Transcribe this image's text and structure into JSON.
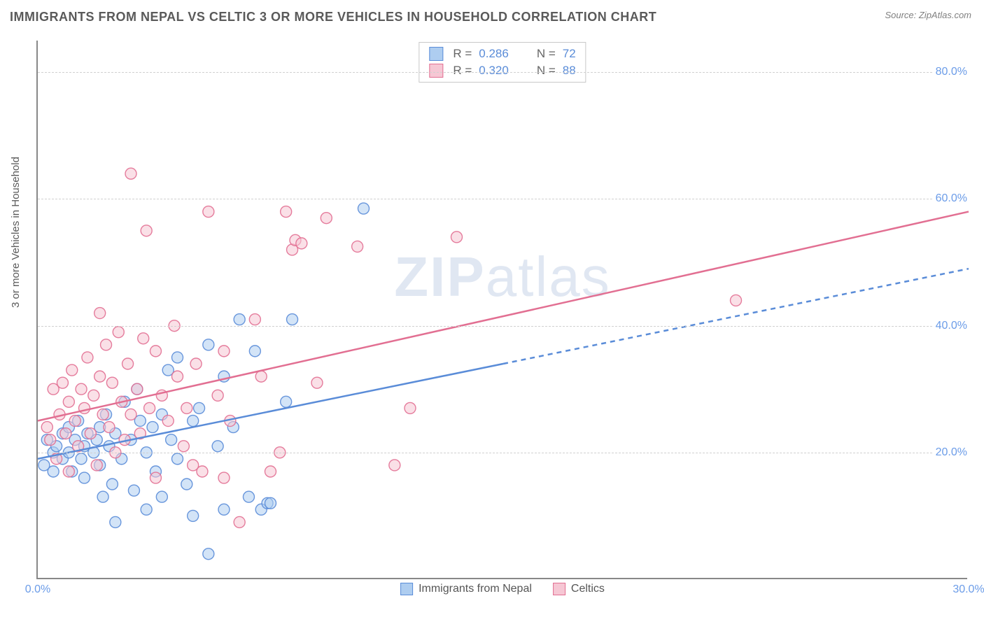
{
  "title": "IMMIGRANTS FROM NEPAL VS CELTIC 3 OR MORE VEHICLES IN HOUSEHOLD CORRELATION CHART",
  "source": "Source: ZipAtlas.com",
  "watermark_bold": "ZIP",
  "watermark_rest": "atlas",
  "y_axis_title": "3 or more Vehicles in Household",
  "chart": {
    "type": "scatter",
    "xlim": [
      0,
      30
    ],
    "ylim": [
      0,
      85
    ],
    "x_ticks": [
      {
        "v": 0,
        "label": "0.0%"
      },
      {
        "v": 30,
        "label": "30.0%"
      }
    ],
    "y_ticks": [
      {
        "v": 20,
        "label": "20.0%"
      },
      {
        "v": 40,
        "label": "40.0%"
      },
      {
        "v": 60,
        "label": "60.0%"
      },
      {
        "v": 80,
        "label": "80.0%"
      }
    ],
    "grid_color": "#d0d0d0",
    "grid_dash": "4,4",
    "background_color": "#ffffff",
    "marker_radius": 8,
    "marker_opacity": 0.55,
    "marker_stroke_width": 1.4,
    "series": [
      {
        "name": "Immigrants from Nepal",
        "fill": "#aecdf0",
        "stroke": "#5a8cd8",
        "R": "0.286",
        "N": "72",
        "trend": {
          "x1": 0,
          "y1": 19,
          "x2": 30,
          "y2": 49,
          "solid_until_x": 15,
          "width": 2.5
        },
        "points": [
          [
            0.2,
            18
          ],
          [
            0.3,
            22
          ],
          [
            0.5,
            20
          ],
          [
            0.5,
            17
          ],
          [
            0.6,
            21
          ],
          [
            0.8,
            23
          ],
          [
            0.8,
            19
          ],
          [
            1.0,
            20
          ],
          [
            1.0,
            24
          ],
          [
            1.1,
            17
          ],
          [
            1.2,
            22
          ],
          [
            1.3,
            25
          ],
          [
            1.4,
            19
          ],
          [
            1.5,
            21
          ],
          [
            1.5,
            16
          ],
          [
            1.6,
            23
          ],
          [
            1.8,
            20
          ],
          [
            1.9,
            22
          ],
          [
            2.0,
            24
          ],
          [
            2.0,
            18
          ],
          [
            2.1,
            13
          ],
          [
            2.2,
            26
          ],
          [
            2.3,
            21
          ],
          [
            2.4,
            15
          ],
          [
            2.5,
            23
          ],
          [
            2.5,
            9
          ],
          [
            2.7,
            19
          ],
          [
            2.8,
            28
          ],
          [
            3.0,
            22
          ],
          [
            3.1,
            14
          ],
          [
            3.2,
            30
          ],
          [
            3.3,
            25
          ],
          [
            3.5,
            11
          ],
          [
            3.5,
            20
          ],
          [
            3.7,
            24
          ],
          [
            3.8,
            17
          ],
          [
            4.0,
            26
          ],
          [
            4.0,
            13
          ],
          [
            4.2,
            33
          ],
          [
            4.3,
            22
          ],
          [
            4.5,
            19
          ],
          [
            4.5,
            35
          ],
          [
            4.8,
            15
          ],
          [
            5.0,
            25
          ],
          [
            5.0,
            10
          ],
          [
            5.2,
            27
          ],
          [
            5.5,
            37
          ],
          [
            5.5,
            4
          ],
          [
            5.8,
            21
          ],
          [
            6.0,
            11
          ],
          [
            6.0,
            32
          ],
          [
            6.3,
            24
          ],
          [
            6.5,
            41
          ],
          [
            6.8,
            13
          ],
          [
            7.0,
            36
          ],
          [
            7.2,
            11
          ],
          [
            7.4,
            12
          ],
          [
            7.5,
            12
          ],
          [
            8.0,
            28
          ],
          [
            8.2,
            41
          ],
          [
            10.5,
            58.5
          ]
        ]
      },
      {
        "name": "Celtics",
        "fill": "#f6c7d4",
        "stroke": "#e26f92",
        "R": "0.320",
        "N": "88",
        "trend": {
          "x1": 0,
          "y1": 25,
          "x2": 30,
          "y2": 58,
          "solid_until_x": 30,
          "width": 2.5
        },
        "points": [
          [
            0.3,
            24
          ],
          [
            0.4,
            22
          ],
          [
            0.5,
            30
          ],
          [
            0.6,
            19
          ],
          [
            0.7,
            26
          ],
          [
            0.8,
            31
          ],
          [
            0.9,
            23
          ],
          [
            1.0,
            28
          ],
          [
            1.0,
            17
          ],
          [
            1.1,
            33
          ],
          [
            1.2,
            25
          ],
          [
            1.3,
            21
          ],
          [
            1.4,
            30
          ],
          [
            1.5,
            27
          ],
          [
            1.6,
            35
          ],
          [
            1.7,
            23
          ],
          [
            1.8,
            29
          ],
          [
            1.9,
            18
          ],
          [
            2.0,
            32
          ],
          [
            2.0,
            42
          ],
          [
            2.1,
            26
          ],
          [
            2.2,
            37
          ],
          [
            2.3,
            24
          ],
          [
            2.4,
            31
          ],
          [
            2.5,
            20
          ],
          [
            2.6,
            39
          ],
          [
            2.7,
            28
          ],
          [
            2.8,
            22
          ],
          [
            2.9,
            34
          ],
          [
            3.0,
            26
          ],
          [
            3.0,
            64
          ],
          [
            3.2,
            30
          ],
          [
            3.3,
            23
          ],
          [
            3.4,
            38
          ],
          [
            3.5,
            55
          ],
          [
            3.6,
            27
          ],
          [
            3.8,
            16
          ],
          [
            3.8,
            36
          ],
          [
            4.0,
            29
          ],
          [
            4.2,
            25
          ],
          [
            4.4,
            40
          ],
          [
            4.5,
            32
          ],
          [
            4.7,
            21
          ],
          [
            4.8,
            27
          ],
          [
            5.0,
            18
          ],
          [
            5.1,
            34
          ],
          [
            5.3,
            17
          ],
          [
            5.5,
            58
          ],
          [
            5.8,
            29
          ],
          [
            6.0,
            36
          ],
          [
            6.0,
            16
          ],
          [
            6.2,
            25
          ],
          [
            6.5,
            9
          ],
          [
            7.0,
            41
          ],
          [
            7.2,
            32
          ],
          [
            7.5,
            17
          ],
          [
            7.8,
            20
          ],
          [
            8.0,
            58
          ],
          [
            8.2,
            52
          ],
          [
            8.3,
            53.5
          ],
          [
            8.5,
            53
          ],
          [
            9.0,
            31
          ],
          [
            9.3,
            57
          ],
          [
            10.3,
            52.5
          ],
          [
            11.5,
            18
          ],
          [
            12.0,
            27
          ],
          [
            13.5,
            54
          ],
          [
            22.5,
            44
          ]
        ]
      }
    ]
  }
}
